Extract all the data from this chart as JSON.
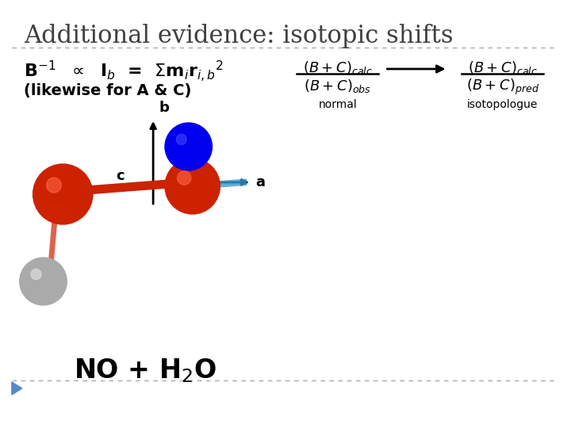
{
  "title": "Additional evidence: isotopic shifts",
  "background_color": "#ffffff",
  "title_color": "#404040",
  "title_fontsize": 22,
  "formula_line1": "B$^{-1}$ ∝ I$_b$ = Σm$_i$r$_{i,b}$$^2$",
  "formula_line2": "(likewise for A & C)",
  "frac_top_normal": "(B+C)$_{calc}$",
  "frac_bot_normal": "(B+C)$_{obs}$",
  "label_normal": "normal",
  "frac_top_iso": "(B+C)$_{calc}$",
  "frac_bot_iso": "(B+C)$_{pred}$",
  "label_iso": "isotopologue",
  "molecule_label": "NO + H$_2$O",
  "axis_b_label": "b",
  "axis_a_label": "a",
  "axis_c_label": "c",
  "dashed_line_color": "#aaaaaa",
  "arrow_color": "#000000",
  "text_color": "#000000",
  "blue_triangle_color": "#5555ff"
}
